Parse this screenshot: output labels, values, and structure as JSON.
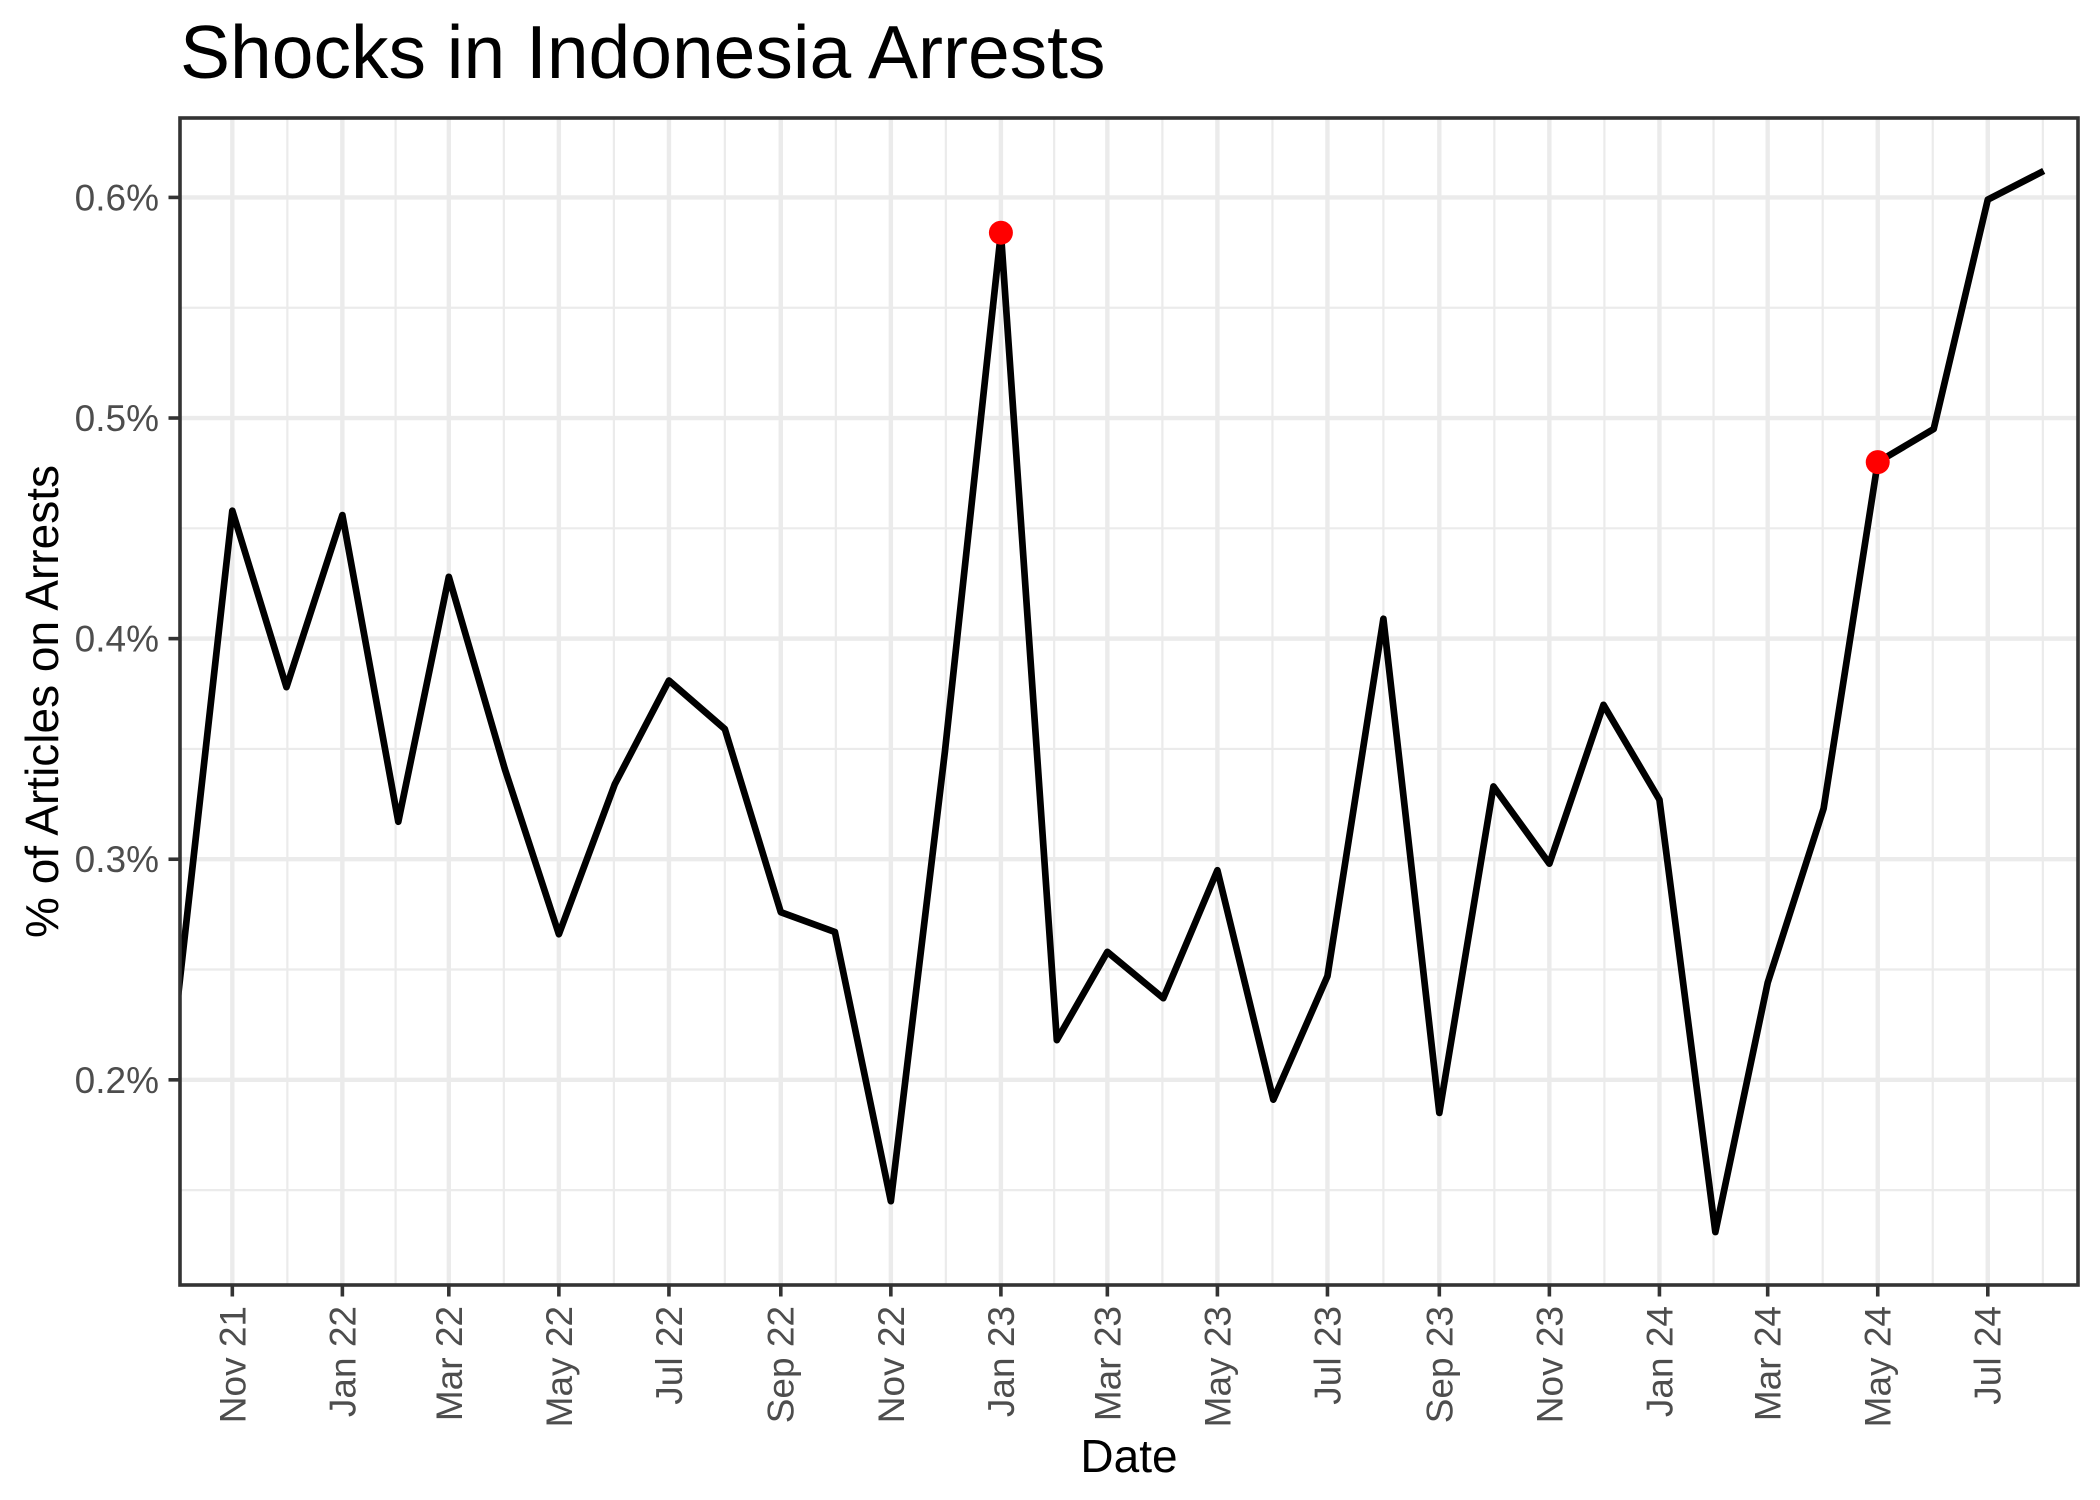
{
  "chart_data": {
    "type": "line",
    "title": "Shocks in Indonesia Arrests",
    "xlabel": "Date",
    "ylabel": "% of Articles on Arrests",
    "x_tick_labels": [
      "Nov 21",
      "Jan 22",
      "Mar 22",
      "May 22",
      "Jul 22",
      "Sep 22",
      "Nov 22",
      "Jan 23",
      "Mar 23",
      "May 23",
      "Jul 23",
      "Sep 23",
      "Nov 23",
      "Jan 24",
      "Mar 24",
      "May 24",
      "Jul 24"
    ],
    "y_tick_labels": [
      "0.2%",
      "0.3%",
      "0.4%",
      "0.5%",
      "0.6%"
    ],
    "xlim": [
      "2021-10-03",
      "2024-08-20"
    ],
    "ylim": [
      0.107,
      0.636
    ],
    "grid": true,
    "legend": "none",
    "series": [
      {
        "color": "#000000",
        "x": [
          "2021-10-01",
          "2021-11-01",
          "2021-12-01",
          "2022-01-01",
          "2022-02-01",
          "2022-03-01",
          "2022-04-01",
          "2022-05-01",
          "2022-06-01",
          "2022-07-01",
          "2022-08-01",
          "2022-09-01",
          "2022-10-01",
          "2022-11-01",
          "2022-12-01",
          "2023-01-01",
          "2023-02-01",
          "2023-03-01",
          "2023-04-01",
          "2023-05-01",
          "2023-06-01",
          "2023-07-01",
          "2023-08-01",
          "2023-09-01",
          "2023-10-01",
          "2023-11-01",
          "2023-12-01",
          "2024-01-01",
          "2024-02-01",
          "2024-03-01",
          "2024-04-01",
          "2024-05-01",
          "2024-06-01",
          "2024-07-01",
          "2024-08-01"
        ],
        "y": [
          0.231,
          0.458,
          0.378,
          0.456,
          0.317,
          0.428,
          0.341,
          0.266,
          0.334,
          0.381,
          0.359,
          0.276,
          0.267,
          0.145,
          0.349,
          0.584,
          0.218,
          0.258,
          0.237,
          0.295,
          0.191,
          0.247,
          0.409,
          0.185,
          0.333,
          0.298,
          0.37,
          0.327,
          0.131,
          0.244,
          0.323,
          0.48,
          0.495,
          0.599,
          0.612
        ]
      }
    ],
    "highlighted_points": {
      "color": "#FF0000",
      "x": [
        "2023-01-01",
        "2024-05-01"
      ],
      "y": [
        0.584,
        0.48
      ]
    }
  }
}
